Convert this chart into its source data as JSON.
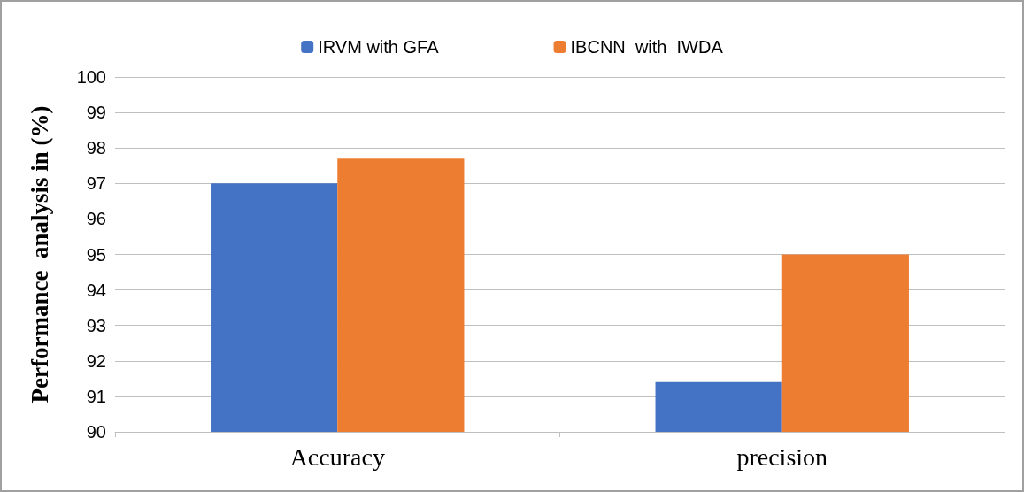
{
  "chart_data": {
    "type": "bar",
    "ylabel": "Performance  analysis in (%)",
    "categories": [
      "Accuracy",
      "precision"
    ],
    "series": [
      {
        "name": "IRVM with GFA",
        "color": "#4472c4",
        "values": [
          97,
          91.4
        ]
      },
      {
        "name": "IBCNN  with  IWDA",
        "color": "#ed7d31",
        "values": [
          97.7,
          95
        ]
      }
    ],
    "ylim": [
      90,
      100
    ],
    "yticks": [
      90,
      91,
      92,
      93,
      94,
      95,
      96,
      97,
      98,
      99,
      100
    ],
    "grid": "y",
    "legend": "top"
  }
}
